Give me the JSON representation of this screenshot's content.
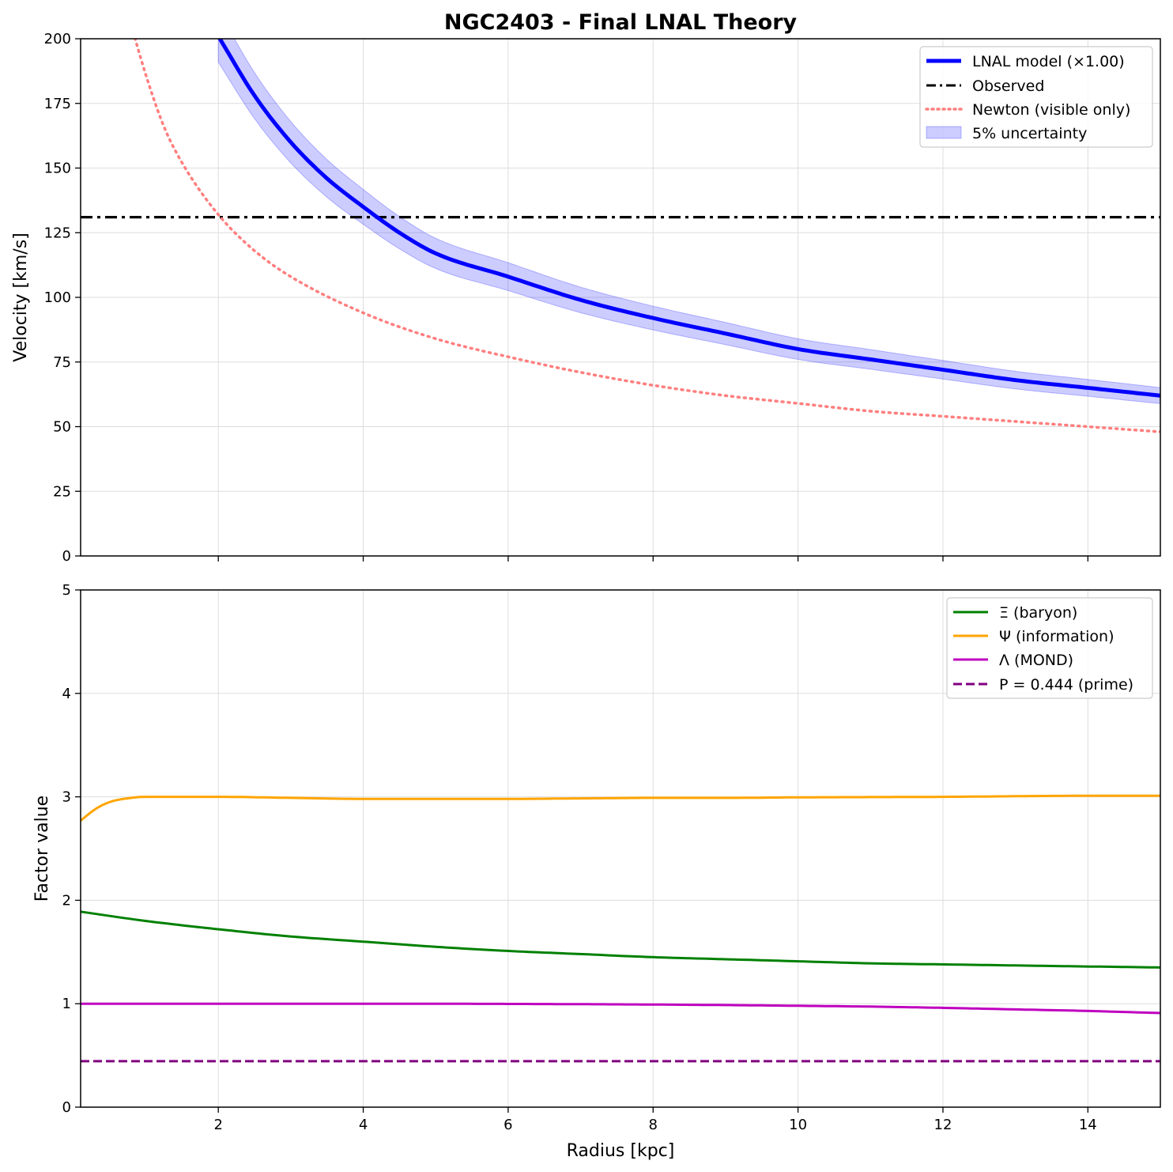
{
  "chart_data": [
    {
      "type": "line",
      "title": "NGC2403 - Final LNAL Theory",
      "xlabel": "",
      "ylabel": "Velocity [km/s]",
      "xlim": [
        0.1,
        15
      ],
      "ylim": [
        0,
        200
      ],
      "xticks": [
        2,
        4,
        6,
        8,
        10,
        12,
        14
      ],
      "xtick_labels_visible": false,
      "yticks": [
        0,
        25,
        50,
        75,
        100,
        125,
        150,
        175,
        200
      ],
      "grid": true,
      "legend_position": "top-right",
      "series": [
        {
          "name": "LNAL model (×1.00)",
          "color": "#0000ff",
          "style": "solid",
          "band_name": "5% uncertainty",
          "band_fraction": 0.05,
          "x": [
            2.0,
            2.5,
            3.0,
            3.5,
            4.0,
            4.5,
            5.0,
            6.0,
            7.0,
            8.0,
            9.0,
            10.0,
            11.0,
            12.0,
            13.0,
            14.0,
            15.0
          ],
          "y": [
            201,
            178,
            160,
            146,
            135,
            125,
            117,
            108,
            99,
            92,
            86,
            80,
            76,
            72,
            68,
            65,
            62
          ]
        },
        {
          "name": "Observed",
          "color": "#000000",
          "style": "dashdot",
          "x": [
            0.1,
            15.0
          ],
          "y": [
            131,
            131
          ]
        },
        {
          "name": "Newton (visible only)",
          "color": "#ff7f7f",
          "style": "dotted",
          "x": [
            0.8,
            1.0,
            1.25,
            1.5,
            2.0,
            2.5,
            3.0,
            4.0,
            5.0,
            6.0,
            7.0,
            8.0,
            9.0,
            10.0,
            11.0,
            12.0,
            13.0,
            14.0,
            15.0
          ],
          "y": [
            205,
            186,
            166,
            152,
            132,
            118,
            108,
            94,
            84,
            77,
            71,
            66,
            62,
            59,
            56,
            54,
            52,
            50,
            48
          ]
        }
      ]
    },
    {
      "type": "line",
      "title": "",
      "xlabel": "Radius [kpc]",
      "ylabel": "Factor value",
      "xlim": [
        0.1,
        15
      ],
      "ylim": [
        0,
        5
      ],
      "xticks": [
        2,
        4,
        6,
        8,
        10,
        12,
        14
      ],
      "yticks": [
        0,
        1,
        2,
        3,
        4,
        5
      ],
      "grid": true,
      "legend_position": "top-right",
      "series": [
        {
          "name": "Ξ (baryon)",
          "color": "#008000",
          "style": "solid",
          "x": [
            0.1,
            1.0,
            2.0,
            3.0,
            4.0,
            5.0,
            6.0,
            7.0,
            8.0,
            9.0,
            10.0,
            11.0,
            12.0,
            13.0,
            14.0,
            15.0
          ],
          "y": [
            1.89,
            1.8,
            1.72,
            1.65,
            1.6,
            1.55,
            1.51,
            1.48,
            1.45,
            1.43,
            1.41,
            1.39,
            1.38,
            1.37,
            1.36,
            1.35
          ]
        },
        {
          "name": "Ψ (information)",
          "color": "#ffa500",
          "style": "solid",
          "x": [
            0.1,
            0.3,
            0.5,
            0.8,
            1.0,
            1.3,
            2.0,
            3.0,
            4.0,
            5.0,
            6.0,
            7.0,
            8.0,
            9.0,
            10.0,
            12.0,
            14.0,
            15.0
          ],
          "y": [
            2.77,
            2.88,
            2.95,
            2.99,
            3.0,
            3.0,
            3.0,
            2.99,
            2.98,
            2.98,
            2.98,
            2.985,
            2.99,
            2.99,
            2.995,
            3.0,
            3.01,
            3.01
          ]
        },
        {
          "name": "Λ (MOND)",
          "color": "#bf00bf",
          "style": "solid",
          "x": [
            0.1,
            2.0,
            4.0,
            6.0,
            8.0,
            9.0,
            10.0,
            11.0,
            12.0,
            13.0,
            14.0,
            15.0
          ],
          "y": [
            1.0,
            1.0,
            1.0,
            0.998,
            0.992,
            0.987,
            0.98,
            0.972,
            0.96,
            0.945,
            0.93,
            0.91
          ]
        },
        {
          "name": "P = 0.444 (prime)",
          "color": "#800080",
          "style": "dashed",
          "x": [
            0.1,
            15.0
          ],
          "y": [
            0.444,
            0.444
          ]
        }
      ]
    }
  ]
}
